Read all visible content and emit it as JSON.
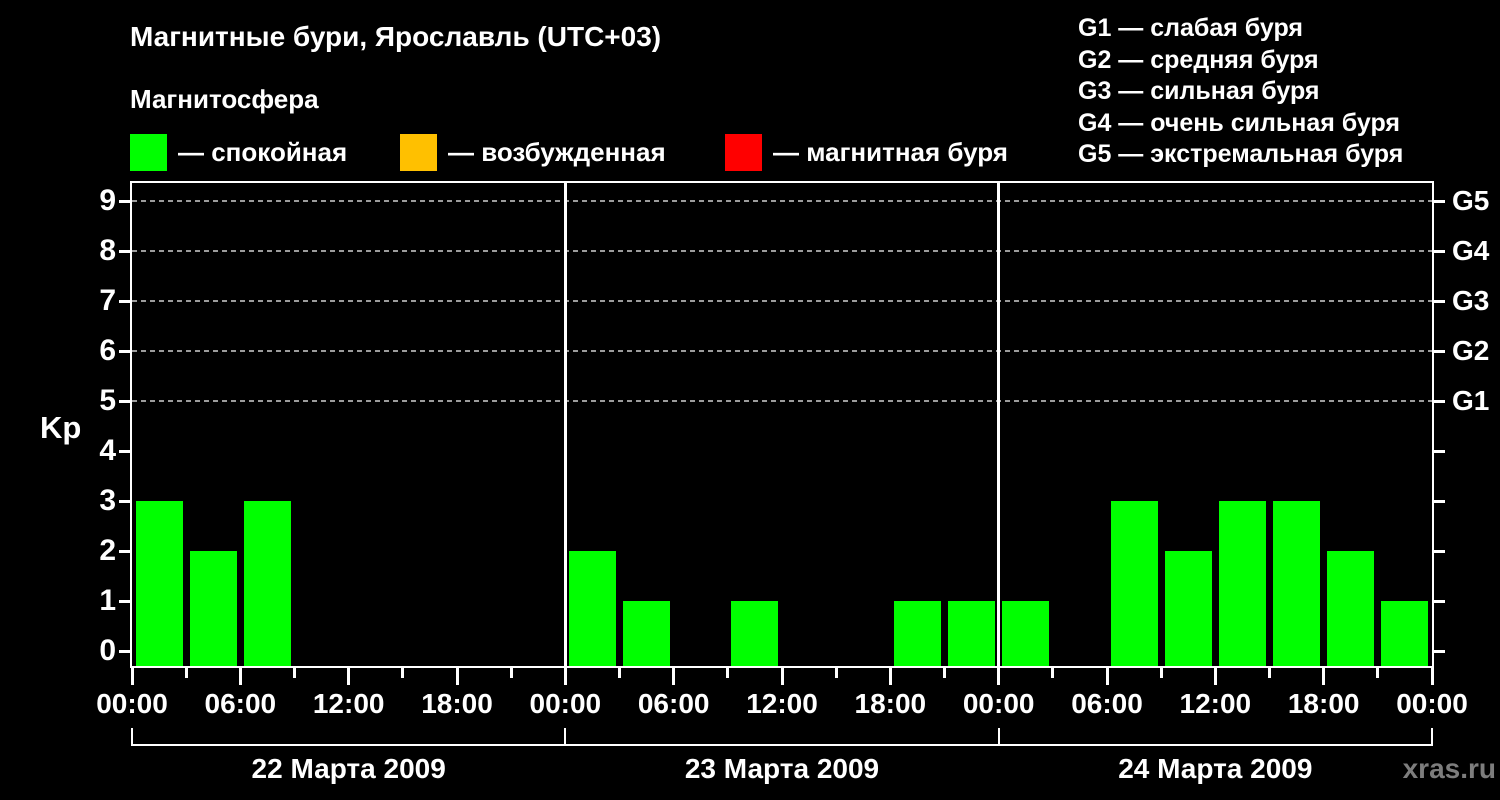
{
  "header": {
    "title": "Магнитные бури, Ярославль (UTC+03)",
    "subtitle": "Магнитосфера",
    "legend": [
      {
        "name": "quiet",
        "label": "— спокойная",
        "color": "#00ff00"
      },
      {
        "name": "excited",
        "label": "— возбужденная",
        "color": "#ffc000"
      },
      {
        "name": "storm",
        "label": "— магнитная буря",
        "color": "#ff0000"
      }
    ],
    "storm_scale": [
      "G1 — слабая буря",
      "G2 — средняя буря",
      "G3 — сильная буря",
      "G4 — очень сильная буря",
      "G5 — экстремальная буря"
    ]
  },
  "watermark": "xras.ru",
  "colors": {
    "background": "#000000",
    "axis": "#ffffff",
    "grid": "#9c9c9c",
    "bar_quiet": "#00ff00",
    "bar_excited": "#ffc000",
    "bar_storm": "#ff0000",
    "watermark": "#7d7d7d"
  },
  "chart_data": {
    "type": "bar",
    "title": "Магнитные бури, Ярославль (UTC+03)",
    "ylabel": "Kp",
    "ylim": [
      0,
      9
    ],
    "yticks": [
      0,
      1,
      2,
      3,
      4,
      5,
      6,
      7,
      8,
      9
    ],
    "gridlines_at_kp": [
      5,
      6,
      7,
      8,
      9
    ],
    "grid": "dashed horizontal lines at Kp 5..9 only",
    "right_axis": [
      {
        "kp": 5,
        "label": "G1"
      },
      {
        "kp": 6,
        "label": "G2"
      },
      {
        "kp": 7,
        "label": "G3"
      },
      {
        "kp": 8,
        "label": "G4"
      },
      {
        "kp": 9,
        "label": "G5"
      }
    ],
    "interval_hours": 3,
    "bar_color": "#00ff00",
    "days": [
      {
        "date": "22 Марта 2009",
        "values": [
          3,
          2,
          3,
          0,
          0,
          0,
          0,
          0
        ]
      },
      {
        "date": "23 Марта 2009",
        "values": [
          2,
          1,
          0,
          1,
          0,
          0,
          1,
          1
        ]
      },
      {
        "date": "24 Марта 2009",
        "values": [
          1,
          0,
          3,
          2,
          3,
          3,
          2,
          1
        ]
      }
    ],
    "x_major_tick_labels": [
      "00:00",
      "06:00",
      "12:00",
      "18:00",
      "00:00",
      "06:00",
      "12:00",
      "18:00",
      "00:00",
      "06:00",
      "12:00",
      "18:00",
      "00:00"
    ],
    "x_minor_ticks_hours": [
      3,
      9,
      15,
      21
    ],
    "legend_position": "top-left"
  }
}
